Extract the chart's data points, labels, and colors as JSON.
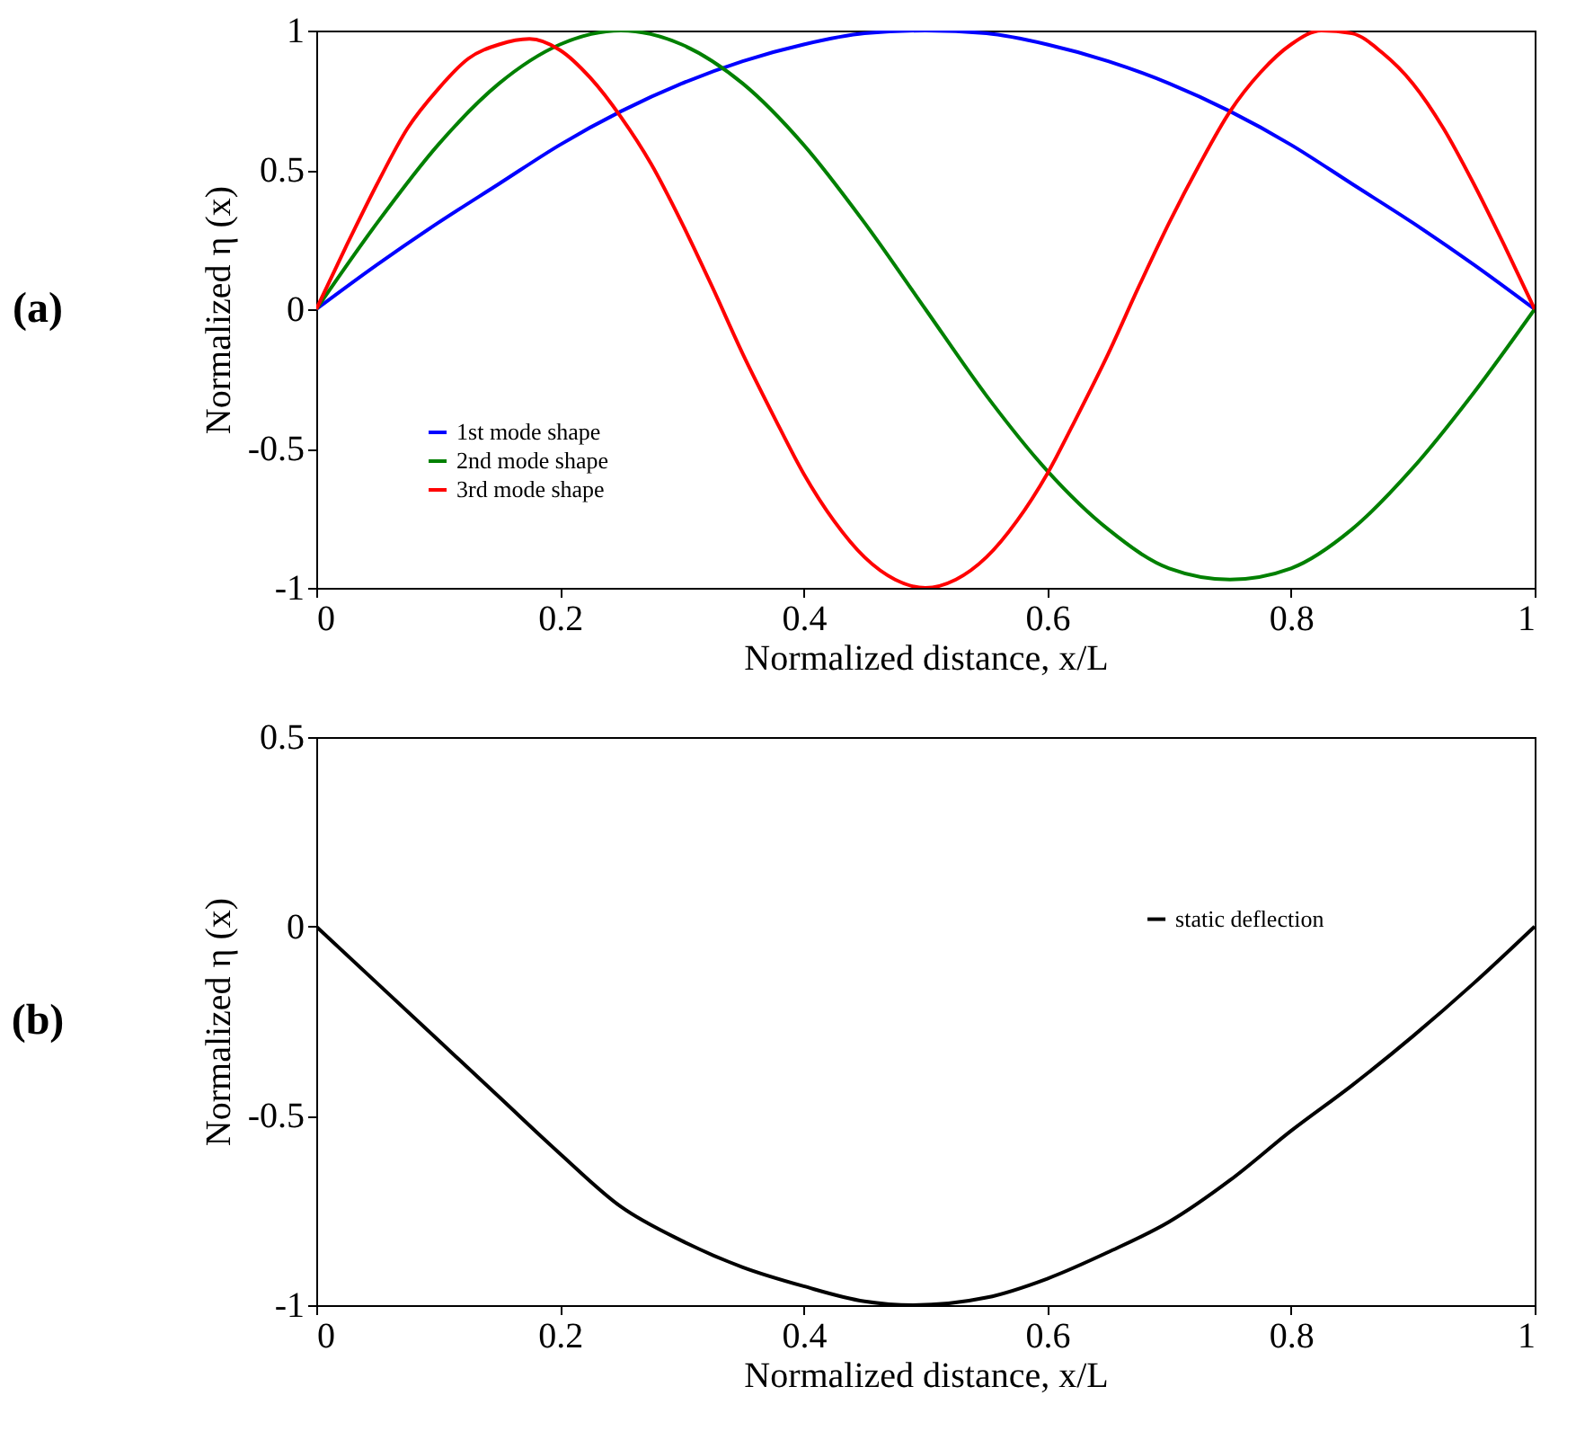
{
  "chart_data": [
    {
      "type": "line",
      "xlabel": "Normalized distance,  x/L",
      "ylabel": "Normalized  η (x)",
      "annotations": [
        "(a)"
      ],
      "xlim": [
        0,
        1
      ],
      "xticks": [
        0,
        0.2,
        0.4,
        0.6,
        0.8,
        1
      ],
      "ylim": [
        -1,
        1
      ],
      "yticks": [
        -1,
        -0.5,
        0,
        0.5,
        1
      ],
      "grid": false,
      "legend": "bottom left",
      "line_style": "solid",
      "series": [
        {
          "name": "1st mode shape",
          "color": "#0000ff",
          "x": [
            0,
            0.05,
            0.1,
            0.15,
            0.2,
            0.25,
            0.3,
            0.35,
            0.4,
            0.45,
            0.5,
            0.55,
            0.6,
            0.65,
            0.7,
            0.75,
            0.8,
            0.85,
            0.9,
            0.95,
            1
          ],
          "values": [
            0,
            0.16,
            0.31,
            0.45,
            0.59,
            0.71,
            0.81,
            0.89,
            0.95,
            0.99,
            1,
            0.99,
            0.95,
            0.89,
            0.81,
            0.71,
            0.59,
            0.45,
            0.31,
            0.16,
            0
          ]
        },
        {
          "name": "2nd mode shape",
          "color": "#008000",
          "x": [
            0,
            0.05,
            0.1,
            0.15,
            0.2,
            0.25,
            0.3,
            0.35,
            0.4,
            0.45,
            0.5,
            0.55,
            0.6,
            0.65,
            0.7,
            0.75,
            0.8,
            0.85,
            0.9,
            0.95,
            1
          ],
          "values": [
            0,
            0.31,
            0.59,
            0.81,
            0.95,
            1,
            0.95,
            0.81,
            0.59,
            0.31,
            0,
            -0.31,
            -0.58,
            -0.79,
            -0.93,
            -0.97,
            -0.93,
            -0.79,
            -0.57,
            -0.3,
            0
          ]
        },
        {
          "name": "3rd mode shape",
          "color": "#ff0000",
          "x": [
            0,
            0.025,
            0.05,
            0.075,
            0.1,
            0.125,
            0.15,
            0.175,
            0.2,
            0.225,
            0.25,
            0.275,
            0.3,
            0.325,
            0.35,
            0.375,
            0.4,
            0.425,
            0.45,
            0.475,
            0.5,
            0.525,
            0.55,
            0.575,
            0.6,
            0.625,
            0.65,
            0.675,
            0.7,
            0.725,
            0.75,
            0.775,
            0.8,
            0.825,
            0.85,
            0.875,
            0.9,
            0.925,
            0.95,
            0.975,
            1
          ],
          "values": [
            0,
            0.23,
            0.45,
            0.65,
            0.79,
            0.9,
            0.95,
            0.97,
            0.93,
            0.83,
            0.69,
            0.52,
            0.31,
            0.08,
            -0.16,
            -0.38,
            -0.59,
            -0.76,
            -0.89,
            -0.97,
            -1,
            -0.97,
            -0.89,
            -0.76,
            -0.59,
            -0.38,
            -0.16,
            0.08,
            0.31,
            0.52,
            0.71,
            0.85,
            0.95,
            1,
            0.99,
            0.92,
            0.81,
            0.65,
            0.45,
            0.23,
            0
          ]
        }
      ]
    },
    {
      "type": "line",
      "xlabel": "Normalized distance, x/L",
      "ylabel": "Normalized η (x)",
      "annotations": [
        "(b)"
      ],
      "xlim": [
        0,
        1
      ],
      "xticks": [
        0,
        0.2,
        0.4,
        0.6,
        0.8,
        1
      ],
      "ylim": [
        -1,
        0.5
      ],
      "yticks": [
        -1,
        -0.5,
        0,
        0.5
      ],
      "grid": false,
      "legend": "right",
      "line_style": "solid",
      "series": [
        {
          "name": "static deflection",
          "color": "#000000",
          "x": [
            0,
            0.05,
            0.1,
            0.15,
            0.2,
            0.25,
            0.3,
            0.35,
            0.4,
            0.45,
            0.49,
            0.55,
            0.6,
            0.65,
            0.7,
            0.75,
            0.8,
            0.85,
            0.9,
            0.95,
            1
          ],
          "values": [
            0,
            -0.15,
            -0.3,
            -0.45,
            -0.6,
            -0.74,
            -0.83,
            -0.9,
            -0.95,
            -0.99,
            -1,
            -0.98,
            -0.93,
            -0.86,
            -0.78,
            -0.67,
            -0.54,
            -0.42,
            -0.29,
            -0.15,
            0
          ]
        }
      ]
    }
  ]
}
